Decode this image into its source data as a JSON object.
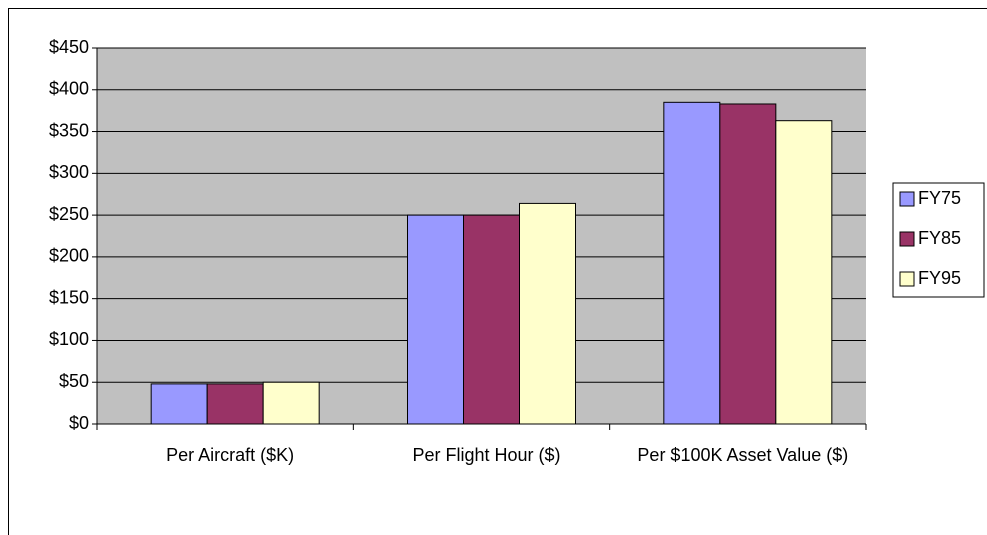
{
  "chart_data": {
    "type": "bar",
    "categories": [
      "Per Aircraft ($K)",
      "Per Flight Hour ($)",
      "Per $100K Asset Value ($)"
    ],
    "series": [
      {
        "name": "FY75",
        "color": "#9999ff",
        "values": [
          48,
          250,
          385
        ]
      },
      {
        "name": "FY85",
        "color": "#993366",
        "values": [
          48,
          250,
          383
        ]
      },
      {
        "name": "FY95",
        "color": "#ffffcc",
        "values": [
          50,
          264,
          363
        ]
      }
    ],
    "ylim": [
      0,
      450
    ],
    "yticks": [
      {
        "value": 0,
        "label": "$0"
      },
      {
        "value": 50,
        "label": "$50"
      },
      {
        "value": 100,
        "label": "$100"
      },
      {
        "value": 150,
        "label": "$150"
      },
      {
        "value": 200,
        "label": "$200"
      },
      {
        "value": 250,
        "label": "$250"
      },
      {
        "value": 300,
        "label": "$300"
      },
      {
        "value": 350,
        "label": "$350"
      },
      {
        "value": 400,
        "label": "$400"
      },
      {
        "value": 450,
        "label": "$450"
      }
    ],
    "grid": true,
    "plot_background": "#c0c0c0",
    "legend": "right"
  }
}
